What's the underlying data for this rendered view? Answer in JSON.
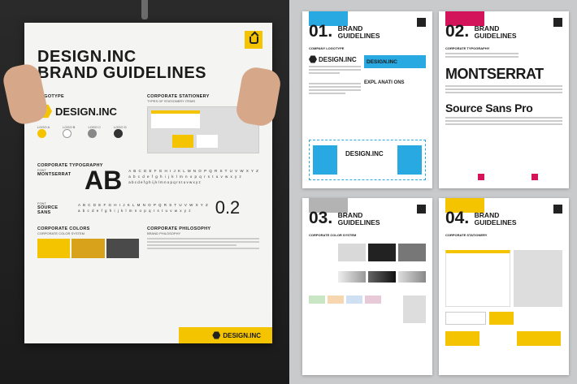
{
  "poster": {
    "title_line1": "DESIGN.INC",
    "title_line2": "BRAND GUIDELINES",
    "logotype_heading": "LOGOTYPE",
    "brand_name": "DESIGN.INC",
    "stationery_heading": "CORPORATE STATIONERY",
    "stationery_sub": "TYPES OF STATIONERY ITEMS",
    "logo_variants": [
      "LOGO A",
      "LOGO B",
      "LOGO C",
      "LOGO D"
    ],
    "typography_heading": "CORPORATE TYPOGRAPHY",
    "font1_label": "FONT",
    "font1_name": "MONTSERRAT",
    "ab": "AB",
    "alphabet_upper": "A B C D E F G H I J K L M N O P Q R S T U V W X Y Z",
    "alphabet_lower": "a b c d e f g h i j k l m n o p q r s t u v w x y z",
    "font2_label": "FONT",
    "font2_name": "SOURCE SANS",
    "version": "0.2",
    "colors_heading": "CORPORATE COLORS",
    "colors_sub": "CORPORATE COLOR SYSTEM",
    "philosophy_heading": "CORPORATE PHILOSOPHY",
    "philosophy_sub": "BRAND PHILOSOPHY",
    "footer_brand": "DESIGN.INC"
  },
  "pages": [
    {
      "num": "01.",
      "title_line1": "BRAND",
      "title_line2": "GUIDELINES",
      "section": "COMPANY LOGOTYPE",
      "accent": "#29a9e1",
      "brand": "DESIGN.INC",
      "extra": "EXPL ANATI ONS"
    },
    {
      "num": "02.",
      "title_line1": "BRAND",
      "title_line2": "GUIDELINES",
      "section": "CORPORATE TYPOGRAPHY",
      "accent": "#d4145a",
      "font_a": "MONTSERRAT",
      "font_b": "Source Sans Pro"
    },
    {
      "num": "03.",
      "title_line1": "BRAND",
      "title_line2": "GUIDELINES",
      "section": "CORPORATE COLOR SYSTEM",
      "accent": "#b3b3b3"
    },
    {
      "num": "04.",
      "title_line1": "BRAND",
      "title_line2": "GUIDELINES",
      "section": "CORPORATE STATIONERY",
      "accent": "#f5c400"
    }
  ],
  "colors": {
    "yellow": "#f5c400",
    "dark_yellow": "#d9a21b",
    "gray": "#8a8a8a",
    "dark": "#4a4a4a"
  }
}
